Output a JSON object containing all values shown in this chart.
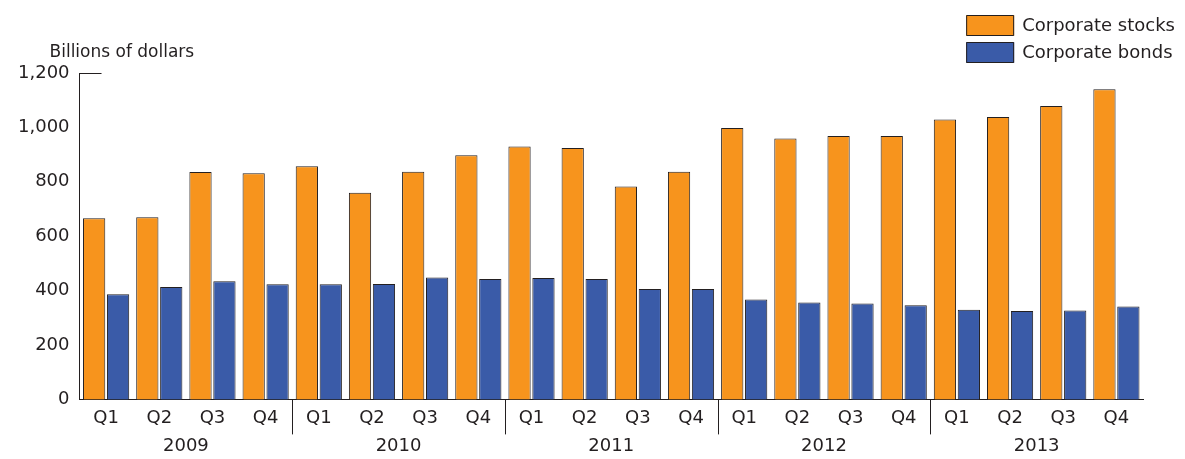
{
  "chart_data": {
    "type": "bar",
    "ylabel": "Billions of dollars",
    "categories": [
      "Q1",
      "Q2",
      "Q3",
      "Q4",
      "Q1",
      "Q2",
      "Q3",
      "Q4",
      "Q1",
      "Q2",
      "Q3",
      "Q4",
      "Q1",
      "Q2",
      "Q3",
      "Q4",
      "Q1",
      "Q2",
      "Q3",
      "Q4"
    ],
    "series": [
      {
        "name": "Corporate stocks",
        "color": "#f7941d",
        "values": [
          666,
          670,
          836,
          831,
          857,
          760,
          837,
          898,
          930,
          924,
          783,
          837,
          998,
          959,
          968,
          968,
          1029,
          1038,
          1079,
          1140
        ]
      },
      {
        "name": "Corporate bonds",
        "color": "#3a5ba8",
        "values": [
          387,
          413,
          434,
          423,
          423,
          424,
          448,
          443,
          446,
          443,
          406,
          406,
          367,
          356,
          353,
          346,
          330,
          325,
          327,
          342
        ]
      }
    ],
    "annotations": [
      "2009",
      "2010",
      "2011",
      "2012",
      "2013"
    ],
    "ylim": [
      0,
      1200
    ],
    "yticks": [
      0,
      {
        "value": 200,
        "label": "200"
      },
      {
        "value": 400,
        "label": "400"
      },
      {
        "value": 600,
        "label": "600"
      },
      {
        "value": 800,
        "label": "800"
      },
      {
        "value": 1000,
        "label": "1,000"
      },
      {
        "value": 1200,
        "label": "1,200"
      }
    ],
    "grid": false,
    "legend": "top right"
  }
}
